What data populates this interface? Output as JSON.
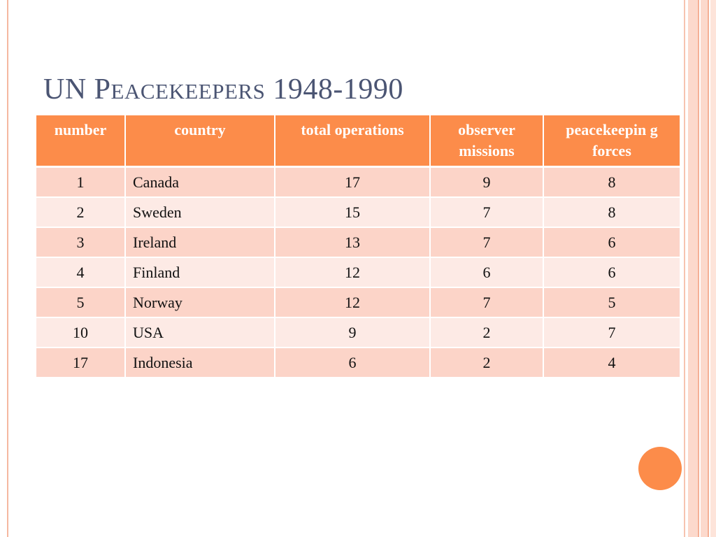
{
  "slide": {
    "title_first": "UN P",
    "title_small": "eacekeepers",
    "title_rest": " 1948-1990"
  },
  "table": {
    "headers": [
      "number",
      "country",
      "total operations",
      "observer missions",
      "peacekeepin g forces"
    ],
    "rows": [
      [
        "1",
        "Canada",
        "17",
        "9",
        "8"
      ],
      [
        "2",
        "Sweden",
        "15",
        "7",
        "8"
      ],
      [
        "3",
        "Ireland",
        "13",
        "7",
        "6"
      ],
      [
        "4",
        "Finland",
        "12",
        "6",
        "6"
      ],
      [
        "5",
        "Norway",
        "12",
        "7",
        "5"
      ],
      [
        "10",
        "USA",
        "9",
        "2",
        "7"
      ],
      [
        "17",
        "Indonesia",
        "6",
        "2",
        "4"
      ]
    ]
  },
  "colors": {
    "accent": "#fc8c4a",
    "row_odd": "#fcd4c8",
    "row_even": "#fdeae5",
    "title": "#4b5573"
  }
}
